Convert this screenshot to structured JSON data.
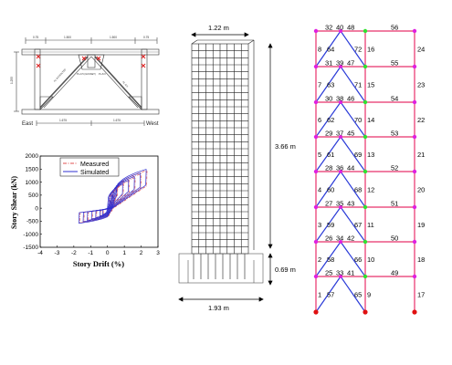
{
  "detail": {
    "top_dims": [
      "0.75",
      "1.500",
      "1.500",
      "0.75"
    ],
    "left_dim": "1.255",
    "bottom_dims": [
      "1.675",
      "1.675"
    ],
    "left_label": "East",
    "right_label": "West",
    "brace_notes": [
      "PL-8.0 BOLTED",
      "PL-9.5 (GUSSET)",
      "PL-8.0",
      "PL-9.5"
    ]
  },
  "hysteresis": {
    "ylabel": "Story Shear (kN)",
    "xlabel": "Story Drift (%)",
    "yticks": [
      "2000",
      "1500",
      "1000",
      "500",
      "0",
      "-500",
      "-1000",
      "-1500"
    ],
    "xticks": [
      "-4",
      "-3",
      "-2",
      "-1",
      "0",
      "1",
      "2",
      "3"
    ],
    "legend": [
      "Measured",
      "Simulated"
    ],
    "colors": {
      "measured": "#e05050",
      "simulated": "#3030d0"
    },
    "chart_data": {
      "type": "line",
      "xlim": [
        -4,
        3
      ],
      "ylim": [
        -1500,
        2000
      ],
      "series": [
        {
          "name": "Measured",
          "style": "dash-dot"
        },
        {
          "name": "Simulated",
          "style": "solid"
        }
      ]
    }
  },
  "column": {
    "top_dim": "1.22 m",
    "height_dim": "3.66 m",
    "base_dim": "0.69 m",
    "bottom_dim": "1.93 m"
  },
  "frame": {
    "left_col_labels": [
      "8",
      "7",
      "6",
      "5",
      "4",
      "3",
      "2",
      "1"
    ],
    "right_col_labels": [
      "24",
      "23",
      "22",
      "21",
      "20",
      "19",
      "18",
      "17"
    ],
    "center_col_labels": [
      "16",
      "15",
      "14",
      "13",
      "12",
      "11",
      "10",
      "9"
    ],
    "beam_right_labels": [
      "56",
      "55",
      "54",
      "53",
      "52",
      "51",
      "50",
      "49"
    ],
    "brace_top_labels": [
      [
        "32",
        "40",
        "48"
      ],
      [
        "31",
        "39",
        "47"
      ],
      [
        "30",
        "38",
        "46"
      ],
      [
        "29",
        "37",
        "45"
      ],
      [
        "28",
        "36",
        "44"
      ],
      [
        "27",
        "35",
        "43"
      ],
      [
        "26",
        "34",
        "42"
      ],
      [
        "25",
        "33",
        "41"
      ]
    ],
    "brace_mid_labels": [
      [
        "64",
        "72"
      ],
      [
        "63",
        "71"
      ],
      [
        "62",
        "70"
      ],
      [
        "61",
        "69"
      ],
      [
        "60",
        "68"
      ],
      [
        "59",
        "67"
      ],
      [
        "58",
        "66"
      ],
      [
        "57",
        "65"
      ]
    ],
    "colors": {
      "frame": "#e8306a",
      "brace": "#2a3bd8",
      "node_red": "#e01010",
      "node_green": "#30e030",
      "node_magenta": "#e020e0"
    }
  }
}
